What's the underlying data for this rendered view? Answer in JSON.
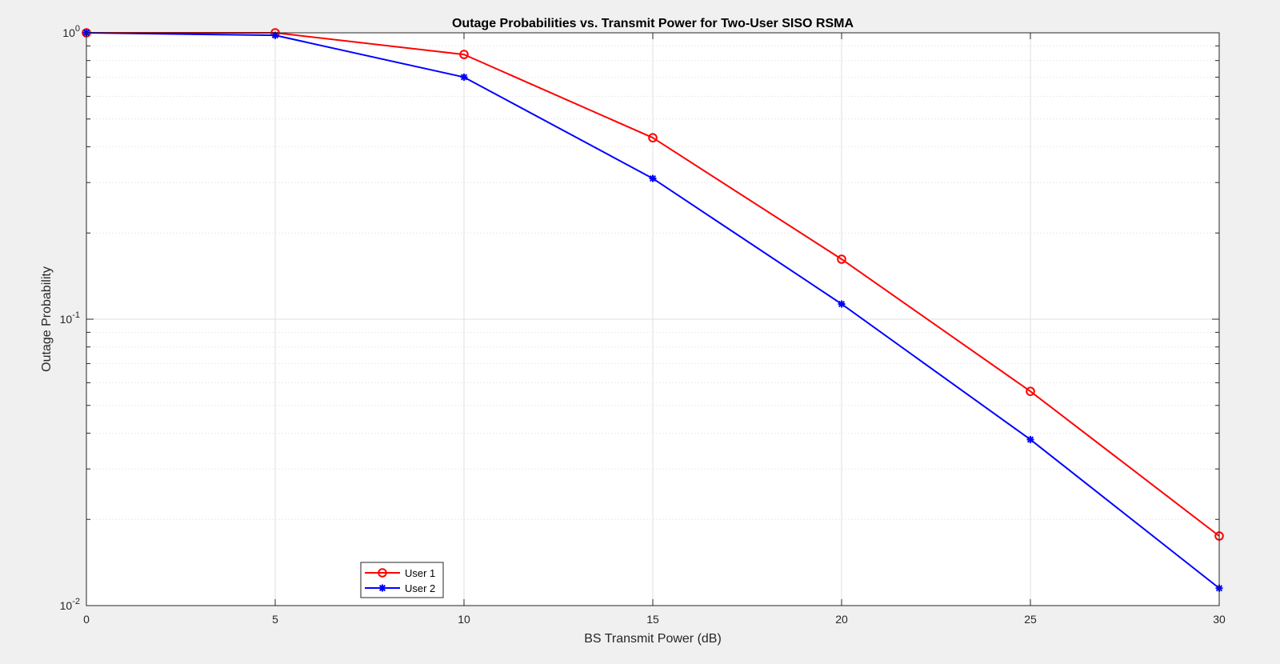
{
  "chart_data": {
    "type": "line",
    "title": "Outage Probabilities vs. Transmit Power for Two-User SISO RSMA",
    "xlabel": "BS Transmit Power (dB)",
    "ylabel": "Outage Probability",
    "xlim": [
      0,
      30
    ],
    "ylim": [
      0.01,
      1
    ],
    "yscale": "log",
    "grid": true,
    "legend_location": "bottom-left",
    "x": [
      0,
      5,
      10,
      15,
      20,
      25,
      30
    ],
    "xticks": [
      "0",
      "5",
      "10",
      "15",
      "20",
      "25",
      "30"
    ],
    "yticks": [
      {
        "value": 1,
        "base": "10",
        "exp": "0"
      },
      {
        "value": 0.1,
        "base": "10",
        "exp": "-1"
      },
      {
        "value": 0.01,
        "base": "10",
        "exp": "-2"
      }
    ],
    "series": [
      {
        "name": "User 1",
        "color": "#ff0000",
        "marker": "circle",
        "values": [
          1.0,
          1.0,
          0.84,
          0.43,
          0.162,
          0.056,
          0.0175
        ]
      },
      {
        "name": "User 2",
        "color": "#0000ff",
        "marker": "asterisk",
        "values": [
          1.0,
          0.98,
          0.7,
          0.31,
          0.113,
          0.038,
          0.0115
        ]
      }
    ]
  }
}
